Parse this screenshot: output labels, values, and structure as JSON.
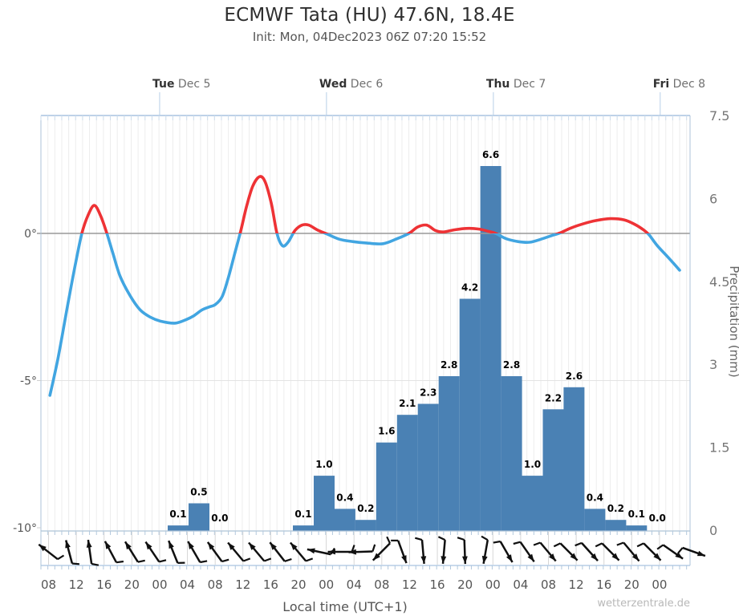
{
  "header": {
    "title": "ECMWF Tata (HU) 47.6N, 18.4E",
    "subtitle": "Init: Mon, 04Dec2023 06Z 07:20 15:52"
  },
  "watermark": "wetterzentrale.de",
  "chart_data": {
    "type": "line+bar",
    "temp_axis": {
      "side": "left",
      "ticks": [
        {
          "label": "0°",
          "value": 0
        },
        {
          "label": "-5°",
          "value": -5
        },
        {
          "label": "-10°",
          "value": -10
        }
      ]
    },
    "precip_axis": {
      "side": "right",
      "title": "Precipitation (mm)",
      "ticks": [
        {
          "label": "7.5",
          "value": 7.5
        },
        {
          "label": "6",
          "value": 6
        },
        {
          "label": "4.5",
          "value": 4.5
        },
        {
          "label": "3",
          "value": 3
        },
        {
          "label": "1.5",
          "value": 1.5
        },
        {
          "label": "0",
          "value": 0
        }
      ]
    },
    "time_axis": {
      "title": "Local time (UTC+1)",
      "total_hours": 93.5,
      "hour_label_start": 1.1,
      "hour_label_step": 4,
      "hour_labels": [
        "08",
        "12",
        "16",
        "20",
        "00",
        "04",
        "08",
        "12",
        "16",
        "20",
        "00",
        "04",
        "08",
        "12",
        "16",
        "20",
        "00",
        "04",
        "08",
        "12",
        "16",
        "20",
        "00"
      ],
      "days": [
        {
          "name": "Tue",
          "date": "Dec 5",
          "h": 17.1
        },
        {
          "name": "Wed",
          "date": "Dec 6",
          "h": 41.13
        },
        {
          "name": "Thu",
          "date": "Dec 7",
          "h": 65.17
        },
        {
          "name": "Fri",
          "date": "Dec 8",
          "h": 89.2
        }
      ]
    },
    "precip_bars": {
      "color": "#4a81b4",
      "bar_hours": 3,
      "bars": [
        {
          "h": 18.26,
          "v": 0.1
        },
        {
          "h": 21.26,
          "v": 0.5
        },
        {
          "h": 24.26,
          "v": 0.0
        },
        {
          "h": 36.29,
          "v": 0.1
        },
        {
          "h": 39.29,
          "v": 1.0
        },
        {
          "h": 42.29,
          "v": 0.4
        },
        {
          "h": 45.29,
          "v": 0.2
        },
        {
          "h": 48.29,
          "v": 1.6
        },
        {
          "h": 51.29,
          "v": 2.1
        },
        {
          "h": 54.29,
          "v": 2.3
        },
        {
          "h": 57.29,
          "v": 2.8
        },
        {
          "h": 60.29,
          "v": 4.2
        },
        {
          "h": 63.29,
          "v": 6.6
        },
        {
          "h": 66.29,
          "v": 2.8
        },
        {
          "h": 69.29,
          "v": 1.0
        },
        {
          "h": 72.29,
          "v": 2.2
        },
        {
          "h": 75.29,
          "v": 2.6
        },
        {
          "h": 78.29,
          "v": 0.4
        },
        {
          "h": 81.29,
          "v": 0.2
        },
        {
          "h": 84.29,
          "v": 0.1
        },
        {
          "h": 87.29,
          "v": 0.0
        }
      ]
    },
    "temp_series": {
      "above_color": "#ee3235",
      "below_color": "#41a5e1",
      "zero_line_color": "#999999",
      "points": [
        [
          1.3,
          -5.5
        ],
        [
          2.5,
          -4.2
        ],
        [
          3.8,
          -2.5
        ],
        [
          5.0,
          -1.0
        ],
        [
          5.9,
          0.0
        ],
        [
          6.8,
          0.62
        ],
        [
          7.7,
          0.95
        ],
        [
          8.6,
          0.6
        ],
        [
          9.5,
          0.0
        ],
        [
          10.4,
          -0.7
        ],
        [
          11.4,
          -1.45
        ],
        [
          12.8,
          -2.1
        ],
        [
          14.3,
          -2.6
        ],
        [
          15.8,
          -2.85
        ],
        [
          17.2,
          -2.98
        ],
        [
          19.3,
          -3.05
        ],
        [
          21.0,
          -2.92
        ],
        [
          22.0,
          -2.8
        ],
        [
          23.2,
          -2.6
        ],
        [
          24.2,
          -2.5
        ],
        [
          25.1,
          -2.42
        ],
        [
          26.1,
          -2.15
        ],
        [
          27.0,
          -1.5
        ],
        [
          27.9,
          -0.7
        ],
        [
          28.8,
          0.1
        ],
        [
          29.6,
          0.9
        ],
        [
          30.5,
          1.6
        ],
        [
          31.5,
          1.93
        ],
        [
          32.3,
          1.75
        ],
        [
          33.2,
          1.0
        ],
        [
          34.0,
          0.0
        ],
        [
          34.8,
          -0.42
        ],
        [
          35.6,
          -0.3
        ],
        [
          36.6,
          0.1
        ],
        [
          37.6,
          0.28
        ],
        [
          38.6,
          0.28
        ],
        [
          39.8,
          0.12
        ],
        [
          41.2,
          -0.02
        ],
        [
          43.0,
          -0.2
        ],
        [
          45.0,
          -0.28
        ],
        [
          47.0,
          -0.33
        ],
        [
          49.3,
          -0.35
        ],
        [
          51.3,
          -0.18
        ],
        [
          53.0,
          0.0
        ],
        [
          54.3,
          0.22
        ],
        [
          55.6,
          0.28
        ],
        [
          56.8,
          0.1
        ],
        [
          58.0,
          0.05
        ],
        [
          59.5,
          0.12
        ],
        [
          61.3,
          0.17
        ],
        [
          63.0,
          0.15
        ],
        [
          64.3,
          0.08
        ],
        [
          65.5,
          0.0
        ],
        [
          67.0,
          -0.18
        ],
        [
          68.8,
          -0.28
        ],
        [
          70.4,
          -0.3
        ],
        [
          72.0,
          -0.2
        ],
        [
          73.5,
          -0.08
        ],
        [
          74.8,
          0.02
        ],
        [
          76.3,
          0.18
        ],
        [
          78.0,
          0.32
        ],
        [
          80.0,
          0.44
        ],
        [
          82.0,
          0.5
        ],
        [
          84.0,
          0.46
        ],
        [
          85.6,
          0.3
        ],
        [
          86.8,
          0.12
        ],
        [
          87.6,
          -0.05
        ],
        [
          88.8,
          -0.42
        ],
        [
          90.3,
          -0.8
        ],
        [
          92.0,
          -1.25
        ]
      ]
    },
    "wind": {
      "color": "#101010",
      "arrows": [
        {
          "h": 1.05,
          "deg": 142
        },
        {
          "h": 4.05,
          "deg": 105
        },
        {
          "h": 7.05,
          "deg": 98
        },
        {
          "h": 10.05,
          "deg": 118
        },
        {
          "h": 13.05,
          "deg": 122
        },
        {
          "h": 16.05,
          "deg": 124
        },
        {
          "h": 19.05,
          "deg": 112
        },
        {
          "h": 22.05,
          "deg": 120
        },
        {
          "h": 25.05,
          "deg": 126
        },
        {
          "h": 28.05,
          "deg": 130
        },
        {
          "h": 31.05,
          "deg": 130
        },
        {
          "h": 34.05,
          "deg": 128
        },
        {
          "h": 37.05,
          "deg": 130
        },
        {
          "h": 40.05,
          "deg": 168
        },
        {
          "h": 43.05,
          "deg": 180
        },
        {
          "h": 46.05,
          "deg": 182
        },
        {
          "h": 49.05,
          "deg": 225
        },
        {
          "h": 52.05,
          "deg": -70
        },
        {
          "h": 55.05,
          "deg": -85
        },
        {
          "h": 58.05,
          "deg": -95
        },
        {
          "h": 61.05,
          "deg": -88
        },
        {
          "h": 64.05,
          "deg": -100
        },
        {
          "h": 67.05,
          "deg": -60
        },
        {
          "h": 70.05,
          "deg": -55
        },
        {
          "h": 73.05,
          "deg": -50
        },
        {
          "h": 76.05,
          "deg": -45
        },
        {
          "h": 79.05,
          "deg": -48
        },
        {
          "h": 82.05,
          "deg": -45
        },
        {
          "h": 85.05,
          "deg": -50
        },
        {
          "h": 88.05,
          "deg": -45
        },
        {
          "h": 91.05,
          "deg": -35
        },
        {
          "h": 94.05,
          "deg": -20
        }
      ]
    }
  }
}
